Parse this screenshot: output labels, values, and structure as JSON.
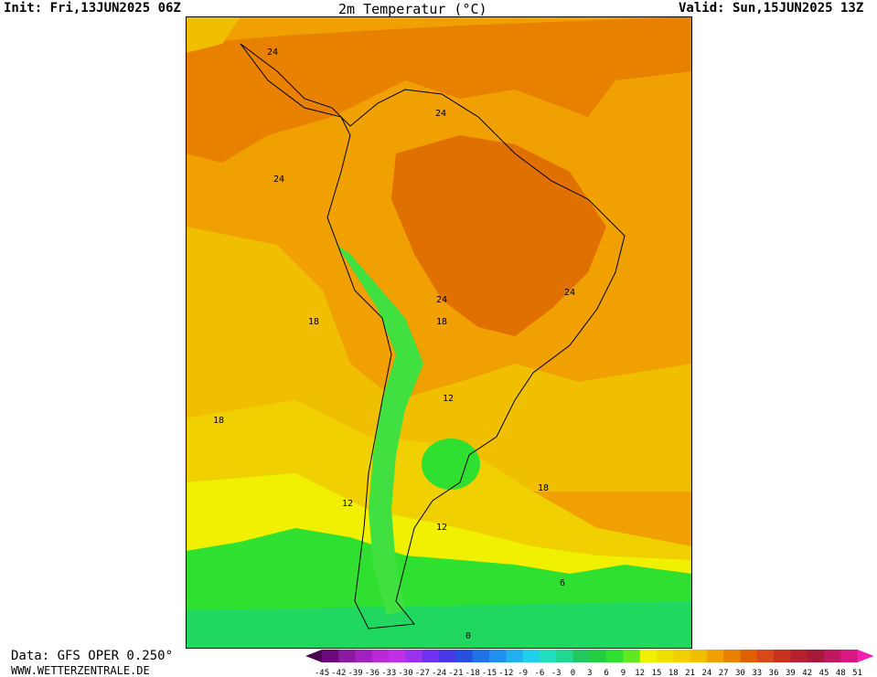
{
  "header": {
    "init": "Init: Fri,13JUN2025 06Z",
    "title": "2m Temperatur (°C)",
    "valid": "Valid: Sun,15JUN2025 13Z"
  },
  "footer": {
    "source": "Data: GFS OPER 0.250°",
    "website": "WWW.WETTERZENTRALE.DE"
  },
  "contour_labels": [
    "24",
    "24",
    "24",
    "24",
    "24",
    "18",
    "18",
    "18",
    "18",
    "12",
    "12",
    "12",
    "6",
    "0"
  ],
  "colorbar": {
    "ticks": [
      "-45",
      "-42",
      "-39",
      "-36",
      "-33",
      "-30",
      "-27",
      "-24",
      "-21",
      "-18",
      "-15",
      "-12",
      "-9",
      "-6",
      "-3",
      "0",
      "3",
      "6",
      "9",
      "12",
      "15",
      "18",
      "21",
      "24",
      "27",
      "30",
      "33",
      "36",
      "39",
      "42",
      "45",
      "48",
      "51"
    ],
    "colors": [
      "#4a0050",
      "#6a0a7a",
      "#8a1aa0",
      "#a020c0",
      "#b828d8",
      "#c030e8",
      "#9a30f0",
      "#7030f0",
      "#4838e8",
      "#2850e0",
      "#2070e8",
      "#2090f0",
      "#20b0f0",
      "#20d0e8",
      "#20e0c0",
      "#20d890",
      "#20c860",
      "#20d040",
      "#30e030",
      "#60e820",
      "#f0f000",
      "#f0e000",
      "#f0d000",
      "#f0c000",
      "#f0a000",
      "#e88000",
      "#e06000",
      "#d84818",
      "#c83020",
      "#b82030",
      "#a81838",
      "#c01860",
      "#d81880",
      "#f020b0"
    ]
  }
}
